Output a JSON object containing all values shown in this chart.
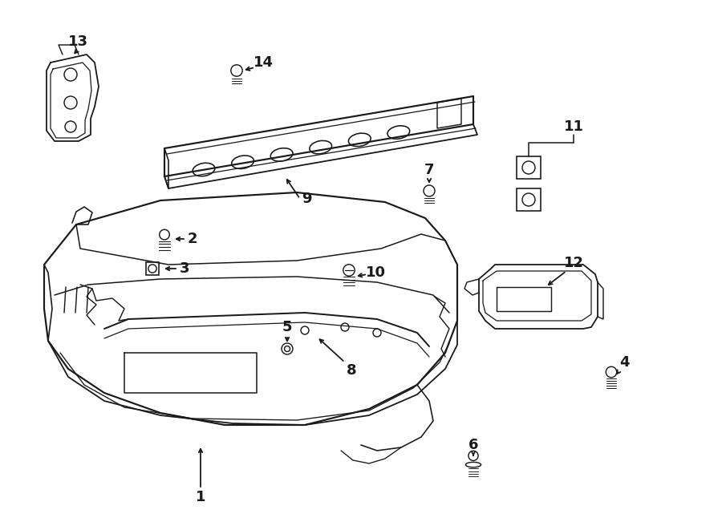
{
  "bg": "#ffffff",
  "lc": "#1a1a1a",
  "lw": 1.3,
  "fw": 9.0,
  "fh": 6.61,
  "dpi": 100,
  "fs": 13
}
